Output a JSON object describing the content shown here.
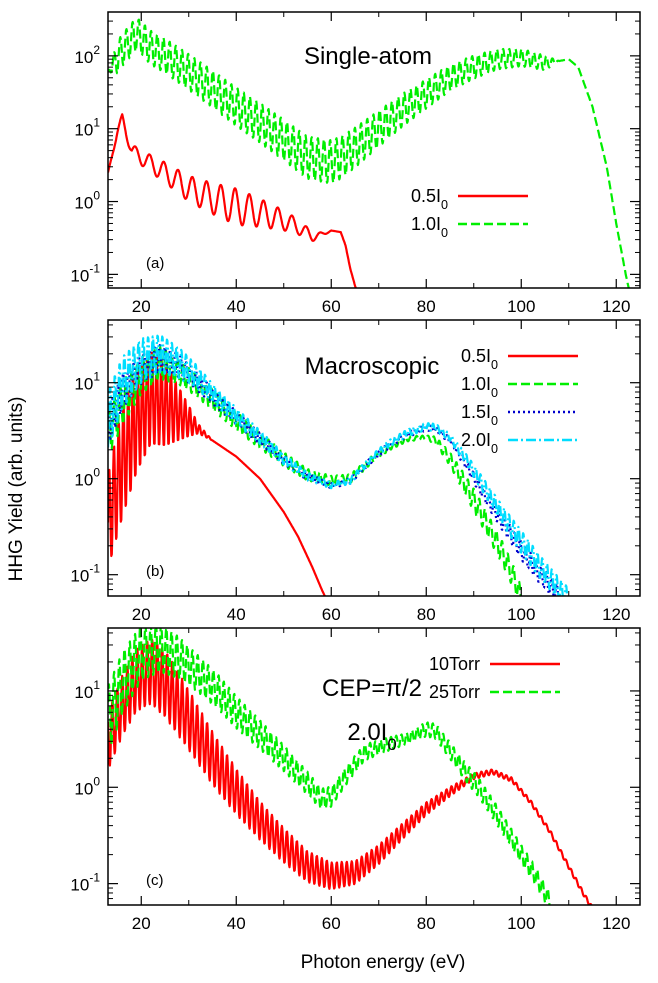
{
  "figure": {
    "xlabel": "Photon energy (eV)",
    "ylabel": "HHG Yield (arb. units)"
  },
  "chart_data": [
    {
      "type": "line",
      "panel_label": "(a)",
      "title": "Single-atom",
      "yscale": "log",
      "xlim": [
        13,
        125
      ],
      "ylim": [
        0.065,
        400
      ],
      "x_ticks": [
        20,
        40,
        60,
        80,
        100,
        120
      ],
      "y_ticks": [
        {
          "value": 0.1,
          "base": "10",
          "exp": "-1"
        },
        {
          "value": 1,
          "base": "10",
          "exp": "0"
        },
        {
          "value": 10,
          "base": "10",
          "exp": "1"
        },
        {
          "value": 100,
          "base": "10",
          "exp": "2"
        }
      ],
      "legend_position": "center-right",
      "series": [
        {
          "name": "0.5I",
          "name_sub": "0",
          "color": "#ff0000",
          "dash": "solid",
          "points": [
            [
              13,
              2.5
            ],
            [
              15,
              9
            ],
            [
              16,
              14
            ],
            [
              18,
              5
            ],
            [
              20,
              4
            ],
            [
              25,
              2.5
            ],
            [
              30,
              1.5
            ],
            [
              35,
              1.1
            ],
            [
              40,
              0.85
            ],
            [
              45,
              0.7
            ],
            [
              50,
              0.55
            ],
            [
              53,
              0.45
            ],
            [
              56,
              0.33
            ],
            [
              58,
              0.35
            ],
            [
              60,
              0.4
            ],
            [
              62,
              0.38
            ],
            [
              63,
              0.25
            ],
            [
              64,
              0.12
            ],
            [
              65,
              0.07
            ],
            [
              66,
              0.045
            ]
          ],
          "osc": [
            [
              13,
              0
            ],
            [
              17,
              0.08
            ],
            [
              40,
              0.25
            ],
            [
              55,
              0.08
            ],
            [
              60,
              0
            ]
          ],
          "osc_period": 3.0
        },
        {
          "name": "1.0I",
          "name_sub": "0",
          "color": "#00ee00",
          "dash": "dashed",
          "points": [
            [
              13,
              60
            ],
            [
              16,
              120
            ],
            [
              19,
              200
            ],
            [
              22,
              130
            ],
            [
              25,
              100
            ],
            [
              30,
              60
            ],
            [
              35,
              35
            ],
            [
              40,
              20
            ],
            [
              45,
              12
            ],
            [
              50,
              7
            ],
            [
              55,
              4
            ],
            [
              60,
              3.5
            ],
            [
              62,
              4
            ],
            [
              65,
              5.5
            ],
            [
              70,
              10
            ],
            [
              75,
              18
            ],
            [
              80,
              30
            ],
            [
              85,
              50
            ],
            [
              90,
              70
            ],
            [
              95,
              90
            ],
            [
              100,
              95
            ],
            [
              105,
              80
            ],
            [
              108,
              85
            ],
            [
              110,
              90
            ],
            [
              112,
              70
            ],
            [
              115,
              20
            ],
            [
              118,
              3
            ],
            [
              120,
              0.5
            ],
            [
              122,
              0.1
            ],
            [
              123,
              0.05
            ]
          ],
          "osc": [
            [
              13,
              0
            ],
            [
              15,
              0.22
            ],
            [
              60,
              0.3
            ],
            [
              80,
              0.2
            ],
            [
              105,
              0.1
            ],
            [
              108,
              0
            ]
          ],
          "osc_period": 1.3
        }
      ]
    },
    {
      "type": "line",
      "panel_label": "(b)",
      "title": "Macroscopic",
      "yscale": "log",
      "xlim": [
        13,
        125
      ],
      "ylim": [
        0.06,
        45
      ],
      "x_ticks": [
        20,
        40,
        60,
        80,
        100,
        120
      ],
      "y_ticks": [
        {
          "value": 0.1,
          "base": "10",
          "exp": "-1"
        },
        {
          "value": 1,
          "base": "10",
          "exp": "0"
        },
        {
          "value": 10,
          "base": "10",
          "exp": "1"
        }
      ],
      "legend_position": "top-right",
      "series": [
        {
          "name": "0.5I",
          "name_sub": "0",
          "color": "#ff0000",
          "dash": "solid",
          "points": [
            [
              13,
              0.35
            ],
            [
              16,
              1.5
            ],
            [
              19,
              4
            ],
            [
              22,
              7
            ],
            [
              25,
              6
            ],
            [
              30,
              4
            ],
            [
              35,
              2.5
            ],
            [
              40,
              1.7
            ],
            [
              45,
              1.0
            ],
            [
              50,
              0.45
            ],
            [
              53,
              0.25
            ],
            [
              56,
              0.12
            ],
            [
              58,
              0.07
            ],
            [
              59,
              0.055
            ]
          ],
          "osc": [
            [
              13,
              0.5
            ],
            [
              16,
              0.6
            ],
            [
              25,
              0.45
            ],
            [
              32,
              0.05
            ],
            [
              35,
              0
            ]
          ],
          "osc_period": 1.0
        },
        {
          "name": "1.0I",
          "name_sub": "0",
          "color": "#00ee00",
          "dash": "dashed",
          "points": [
            [
              13,
              3
            ],
            [
              16,
              6
            ],
            [
              20,
              12
            ],
            [
              24,
              16
            ],
            [
              28,
              13
            ],
            [
              32,
              9
            ],
            [
              36,
              6
            ],
            [
              40,
              4
            ],
            [
              45,
              2.5
            ],
            [
              50,
              1.6
            ],
            [
              55,
              1.1
            ],
            [
              60,
              0.95
            ],
            [
              64,
              1.0
            ],
            [
              68,
              1.5
            ],
            [
              72,
              2.1
            ],
            [
              76,
              2.6
            ],
            [
              80,
              2.7
            ],
            [
              82,
              2.5
            ],
            [
              85,
              1.6
            ],
            [
              88,
              0.9
            ],
            [
              92,
              0.4
            ],
            [
              96,
              0.17
            ],
            [
              99,
              0.08
            ],
            [
              100,
              0.055
            ]
          ],
          "osc": [
            [
              13,
              0.25
            ],
            [
              30,
              0.12
            ],
            [
              55,
              0.06
            ],
            [
              80,
              0.02
            ],
            [
              90,
              0.12
            ],
            [
              100,
              0.12
            ]
          ],
          "osc_period": 1.2
        },
        {
          "name": "1.5I",
          "name_sub": "0",
          "color": "#0000cc",
          "dash": "dotted",
          "points": [
            [
              13,
              3.5
            ],
            [
              16,
              8
            ],
            [
              20,
              14
            ],
            [
              24,
              18
            ],
            [
              28,
              15
            ],
            [
              32,
              10
            ],
            [
              36,
              6.5
            ],
            [
              40,
              4.3
            ],
            [
              45,
              2.6
            ],
            [
              50,
              1.6
            ],
            [
              55,
              1.05
            ],
            [
              60,
              0.85
            ],
            [
              64,
              0.95
            ],
            [
              68,
              1.5
            ],
            [
              72,
              2.2
            ],
            [
              76,
              2.9
            ],
            [
              80,
              3.4
            ],
            [
              82,
              3.3
            ],
            [
              85,
              2.5
            ],
            [
              88,
              1.5
            ],
            [
              92,
              0.7
            ],
            [
              96,
              0.35
            ],
            [
              100,
              0.18
            ],
            [
              104,
              0.1
            ],
            [
              108,
              0.06
            ]
          ],
          "osc": [
            [
              13,
              0.2
            ],
            [
              35,
              0.08
            ],
            [
              60,
              0.03
            ],
            [
              85,
              0.03
            ],
            [
              100,
              0.1
            ]
          ],
          "osc_period": 1.1
        },
        {
          "name": "2.0I",
          "name_sub": "0",
          "color": "#00ddff",
          "dash": "dashdot",
          "points": [
            [
              13,
              4
            ],
            [
              16,
              10
            ],
            [
              20,
              17
            ],
            [
              24,
              20
            ],
            [
              28,
              16
            ],
            [
              32,
              11
            ],
            [
              36,
              7
            ],
            [
              40,
              4.5
            ],
            [
              45,
              2.7
            ],
            [
              50,
              1.6
            ],
            [
              55,
              1.05
            ],
            [
              60,
              0.85
            ],
            [
              64,
              0.95
            ],
            [
              68,
              1.55
            ],
            [
              72,
              2.3
            ],
            [
              76,
              3.0
            ],
            [
              80,
              3.5
            ],
            [
              82,
              3.4
            ],
            [
              85,
              2.7
            ],
            [
              88,
              1.7
            ],
            [
              92,
              0.85
            ],
            [
              96,
              0.42
            ],
            [
              100,
              0.22
            ],
            [
              104,
              0.12
            ],
            [
              108,
              0.07
            ],
            [
              110,
              0.055
            ]
          ],
          "osc": [
            [
              13,
              0.3
            ],
            [
              35,
              0.1
            ],
            [
              60,
              0.03
            ],
            [
              85,
              0.04
            ],
            [
              100,
              0.12
            ]
          ],
          "osc_period": 1.0
        }
      ]
    },
    {
      "type": "line",
      "panel_label": "(c)",
      "title": "CEP=π/2",
      "title2": "2.0I",
      "title2_sub": "0",
      "yscale": "log",
      "xlim": [
        13,
        125
      ],
      "ylim": [
        0.06,
        45
      ],
      "x_ticks": [
        20,
        40,
        60,
        80,
        100,
        120
      ],
      "y_ticks": [
        {
          "value": 0.1,
          "base": "10",
          "exp": "-1"
        },
        {
          "value": 1,
          "base": "10",
          "exp": "0"
        },
        {
          "value": 10,
          "base": "10",
          "exp": "1"
        }
      ],
      "legend_position": "top-right",
      "series": [
        {
          "name": "10Torr",
          "name_sub": "",
          "color": "#ff0000",
          "dash": "solid",
          "points": [
            [
              13,
              3
            ],
            [
              16,
              7
            ],
            [
              19,
              13
            ],
            [
              22,
              16
            ],
            [
              25,
              12
            ],
            [
              30,
              5
            ],
            [
              35,
              2
            ],
            [
              40,
              0.9
            ],
            [
              45,
              0.45
            ],
            [
              50,
              0.25
            ],
            [
              55,
              0.15
            ],
            [
              60,
              0.12
            ],
            [
              65,
              0.13
            ],
            [
              70,
              0.2
            ],
            [
              75,
              0.35
            ],
            [
              80,
              0.6
            ],
            [
              85,
              0.9
            ],
            [
              90,
              1.3
            ],
            [
              94,
              1.45
            ],
            [
              98,
              1.2
            ],
            [
              102,
              0.7
            ],
            [
              106,
              0.35
            ],
            [
              110,
              0.15
            ],
            [
              113,
              0.08
            ],
            [
              115,
              0.055
            ]
          ],
          "osc": [
            [
              13,
              0.3
            ],
            [
              25,
              0.35
            ],
            [
              45,
              0.2
            ],
            [
              70,
              0.1
            ],
            [
              90,
              0.03
            ],
            [
              100,
              0.02
            ]
          ],
          "osc_period": 1.05
        },
        {
          "name": "25Torr",
          "name_sub": "",
          "color": "#00ee00",
          "dash": "dashed",
          "points": [
            [
              13,
              5
            ],
            [
              16,
              12
            ],
            [
              20,
              25
            ],
            [
              24,
              28
            ],
            [
              28,
              22
            ],
            [
              32,
              15
            ],
            [
              36,
              10
            ],
            [
              40,
              6
            ],
            [
              45,
              3.5
            ],
            [
              50,
              2
            ],
            [
              55,
              1.1
            ],
            [
              58,
              0.75
            ],
            [
              60,
              0.8
            ],
            [
              63,
              1.3
            ],
            [
              67,
              2.3
            ],
            [
              72,
              2.8
            ],
            [
              76,
              3.2
            ],
            [
              80,
              4
            ],
            [
              82,
              3.8
            ],
            [
              85,
              2.4
            ],
            [
              88,
              1.5
            ],
            [
              91,
              1.0
            ],
            [
              94,
              0.6
            ],
            [
              97,
              0.35
            ],
            [
              100,
              0.2
            ],
            [
              103,
              0.12
            ],
            [
              106,
              0.065
            ]
          ],
          "osc": [
            [
              13,
              0.35
            ],
            [
              30,
              0.2
            ],
            [
              55,
              0.12
            ],
            [
              75,
              0.06
            ],
            [
              90,
              0.1
            ],
            [
              100,
              0.1
            ]
          ],
          "osc_period": 1.1
        }
      ]
    }
  ]
}
